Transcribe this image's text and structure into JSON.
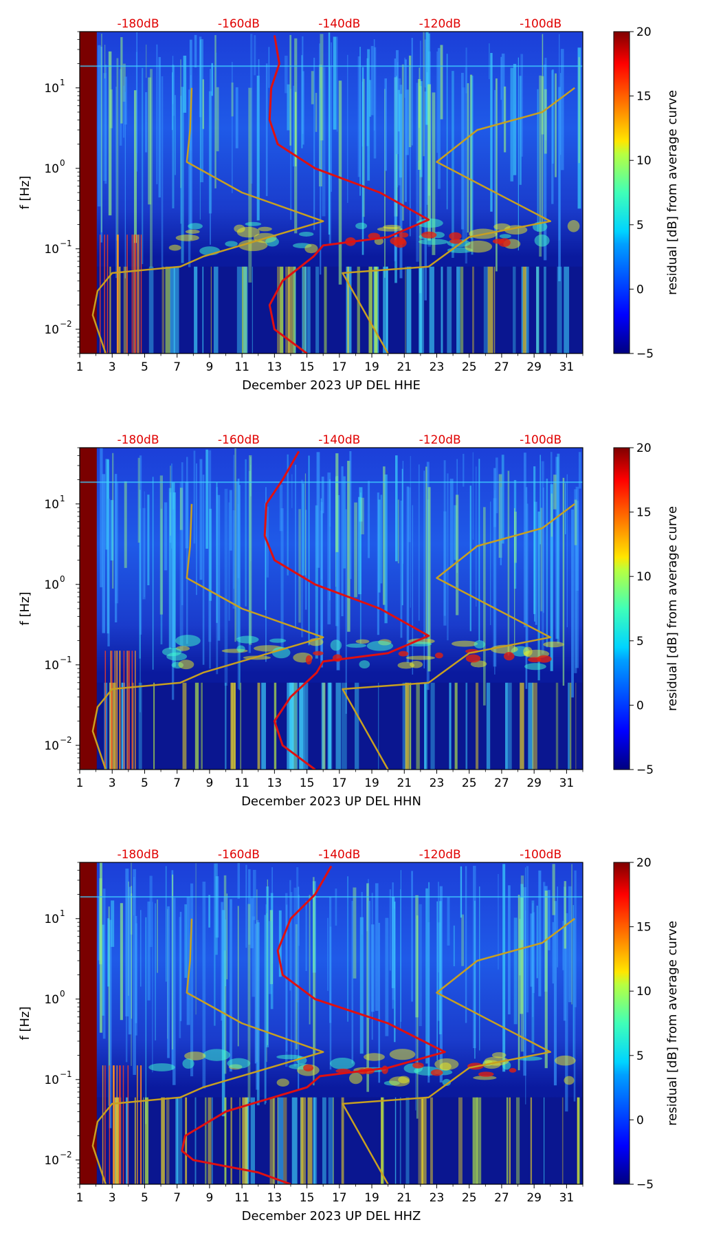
{
  "chart_data": [
    {
      "type": "heatmap",
      "title": "",
      "xlabel": "December 2023 UP DEL  HHE",
      "ylabel": "f [Hz]",
      "x_ticks": [
        "1",
        "3",
        "5",
        "7",
        "9",
        "11",
        "13",
        "15",
        "17",
        "19",
        "21",
        "23",
        "25",
        "27",
        "29",
        "31"
      ],
      "x_range": [
        1,
        32
      ],
      "y_ticks": [
        {
          "base": "10",
          "exp": "1",
          "value": 10
        },
        {
          "base": "10",
          "exp": "0",
          "value": 1
        },
        {
          "base": "10",
          "exp": "−1",
          "value": 0.1
        },
        {
          "base": "10",
          "exp": "−2",
          "value": 0.01
        }
      ],
      "y_range": [
        0.005,
        50
      ],
      "top_axis_ticks": [
        "-180dB",
        "-160dB",
        "-140dB",
        "-120dB",
        "-100dB"
      ],
      "colorbar": {
        "label": "residual [dB] from average curve",
        "ticks": [
          "20",
          "15",
          "10",
          "5",
          "0",
          "−5"
        ],
        "range": [
          -5,
          20
        ]
      },
      "series": [
        {
          "name": "average PSD (red)",
          "color": "#e01010",
          "points": [
            [
              13.0,
              45
            ],
            [
              13.3,
              20
            ],
            [
              12.8,
              10
            ],
            [
              12.7,
              4
            ],
            [
              13.2,
              2
            ],
            [
              15.5,
              1
            ],
            [
              19.5,
              0.5
            ],
            [
              22.5,
              0.23
            ],
            [
              20,
              0.14
            ],
            [
              16,
              0.11
            ],
            [
              15.4,
              0.08
            ],
            [
              13.5,
              0.04
            ],
            [
              12.7,
              0.02
            ],
            [
              13.0,
              0.01
            ],
            [
              15.0,
              0.005
            ]
          ]
        },
        {
          "name": "noise model (gold)",
          "color": "#c8a020",
          "points": [
            [
              7.9,
              10
            ],
            [
              7.8,
              3
            ],
            [
              7.6,
              1.2
            ],
            [
              11,
              0.5
            ],
            [
              16,
              0.22
            ],
            [
              8.6,
              0.08
            ],
            [
              7.2,
              0.06
            ],
            [
              3.0,
              0.05
            ],
            [
              2.1,
              0.03
            ],
            [
              1.8,
              0.015
            ],
            [
              2.6,
              0.005
            ]
          ]
        },
        {
          "name": "noise model high (gold)",
          "color": "#c8a020",
          "points": [
            [
              31.5,
              10
            ],
            [
              29.5,
              5
            ],
            [
              25.5,
              3
            ],
            [
              23,
              1.2
            ],
            [
              30,
              0.22
            ],
            [
              25,
              0.14
            ],
            [
              22.5,
              0.06
            ],
            [
              17.2,
              0.05
            ],
            [
              20,
              0.005
            ]
          ]
        }
      ]
    },
    {
      "type": "heatmap",
      "title": "",
      "xlabel": "December 2023 UP DEL  HHN",
      "ylabel": "f [Hz]",
      "x_ticks": [
        "1",
        "3",
        "5",
        "7",
        "9",
        "11",
        "13",
        "15",
        "17",
        "19",
        "21",
        "23",
        "25",
        "27",
        "29",
        "31"
      ],
      "x_range": [
        1,
        32
      ],
      "y_ticks": [
        {
          "base": "10",
          "exp": "1",
          "value": 10
        },
        {
          "base": "10",
          "exp": "0",
          "value": 1
        },
        {
          "base": "10",
          "exp": "−1",
          "value": 0.1
        },
        {
          "base": "10",
          "exp": "−2",
          "value": 0.01
        }
      ],
      "y_range": [
        0.005,
        50
      ],
      "top_axis_ticks": [
        "-180dB",
        "-160dB",
        "-140dB",
        "-120dB",
        "-100dB"
      ],
      "colorbar": {
        "label": "residual [dB] from average curve",
        "ticks": [
          "20",
          "15",
          "10",
          "5",
          "0",
          "−5"
        ],
        "range": [
          -5,
          20
        ]
      },
      "series": [
        {
          "name": "average PSD (red)",
          "color": "#e01010",
          "points": [
            [
              14.5,
              45
            ],
            [
              13.5,
              20
            ],
            [
              12.5,
              10
            ],
            [
              12.4,
              4
            ],
            [
              13.0,
              2
            ],
            [
              15.5,
              1
            ],
            [
              19.5,
              0.5
            ],
            [
              22.5,
              0.23
            ],
            [
              20,
              0.14
            ],
            [
              16,
              0.11
            ],
            [
              15.6,
              0.08
            ],
            [
              14,
              0.04
            ],
            [
              13.0,
              0.02
            ],
            [
              13.5,
              0.01
            ],
            [
              15.5,
              0.005
            ]
          ]
        },
        {
          "name": "noise model (gold)",
          "color": "#c8a020",
          "points": [
            [
              7.9,
              10
            ],
            [
              7.8,
              3
            ],
            [
              7.6,
              1.2
            ],
            [
              11,
              0.5
            ],
            [
              16,
              0.22
            ],
            [
              8.6,
              0.08
            ],
            [
              7.2,
              0.06
            ],
            [
              3.0,
              0.05
            ],
            [
              2.1,
              0.03
            ],
            [
              1.8,
              0.015
            ],
            [
              2.6,
              0.005
            ]
          ]
        },
        {
          "name": "noise model high (gold)",
          "color": "#c8a020",
          "points": [
            [
              31.5,
              10
            ],
            [
              29.5,
              5
            ],
            [
              25.5,
              3
            ],
            [
              23,
              1.2
            ],
            [
              30,
              0.22
            ],
            [
              25,
              0.14
            ],
            [
              22.5,
              0.06
            ],
            [
              17.2,
              0.05
            ],
            [
              20,
              0.005
            ]
          ]
        }
      ]
    },
    {
      "type": "heatmap",
      "title": "",
      "xlabel": "December 2023 UP DEL  HHZ",
      "ylabel": "f [Hz]",
      "x_ticks": [
        "1",
        "3",
        "5",
        "7",
        "9",
        "11",
        "13",
        "15",
        "17",
        "19",
        "21",
        "23",
        "25",
        "27",
        "29",
        "31"
      ],
      "x_range": [
        1,
        32
      ],
      "y_ticks": [
        {
          "base": "10",
          "exp": "1",
          "value": 10
        },
        {
          "base": "10",
          "exp": "0",
          "value": 1
        },
        {
          "base": "10",
          "exp": "−1",
          "value": 0.1
        },
        {
          "base": "10",
          "exp": "−2",
          "value": 0.01
        }
      ],
      "y_range": [
        0.005,
        50
      ],
      "top_axis_ticks": [
        "-180dB",
        "-160dB",
        "-140dB",
        "-120dB",
        "-100dB"
      ],
      "colorbar": {
        "label": "residual [dB] from average curve",
        "ticks": [
          "20",
          "15",
          "10",
          "5",
          "0",
          "−5"
        ],
        "range": [
          -5,
          20
        ]
      },
      "series": [
        {
          "name": "average PSD (red)",
          "color": "#e01010",
          "points": [
            [
              16.5,
              45
            ],
            [
              15.5,
              20
            ],
            [
              14,
              10
            ],
            [
              13.2,
              4
            ],
            [
              13.5,
              2
            ],
            [
              15.5,
              1
            ],
            [
              20,
              0.5
            ],
            [
              23.5,
              0.22
            ],
            [
              20,
              0.14
            ],
            [
              15.8,
              0.11
            ],
            [
              15,
              0.08
            ],
            [
              10,
              0.04
            ],
            [
              7.5,
              0.02
            ],
            [
              7.3,
              0.013
            ],
            [
              8,
              0.01
            ],
            [
              12,
              0.007
            ],
            [
              14,
              0.005
            ]
          ]
        },
        {
          "name": "noise model (gold)",
          "color": "#c8a020",
          "points": [
            [
              7.9,
              10
            ],
            [
              7.8,
              3
            ],
            [
              7.6,
              1.2
            ],
            [
              11,
              0.5
            ],
            [
              16,
              0.22
            ],
            [
              8.6,
              0.08
            ],
            [
              7.2,
              0.06
            ],
            [
              3.0,
              0.05
            ],
            [
              2.1,
              0.03
            ],
            [
              1.8,
              0.015
            ],
            [
              2.6,
              0.005
            ]
          ]
        },
        {
          "name": "noise model high (gold)",
          "color": "#c8a020",
          "points": [
            [
              31.5,
              10
            ],
            [
              29.5,
              5
            ],
            [
              25.5,
              3
            ],
            [
              23,
              1.2
            ],
            [
              30,
              0.22
            ],
            [
              25,
              0.14
            ],
            [
              22.5,
              0.06
            ],
            [
              17.2,
              0.05
            ],
            [
              20,
              0.005
            ]
          ]
        }
      ]
    }
  ],
  "colors": {
    "heatmap_bg": "#0a1eb0",
    "band": "#2060ff",
    "cyan": "#30d0ff",
    "yellow": "#f0e020",
    "red": "#d02010",
    "dark_red": "#7a0000"
  }
}
